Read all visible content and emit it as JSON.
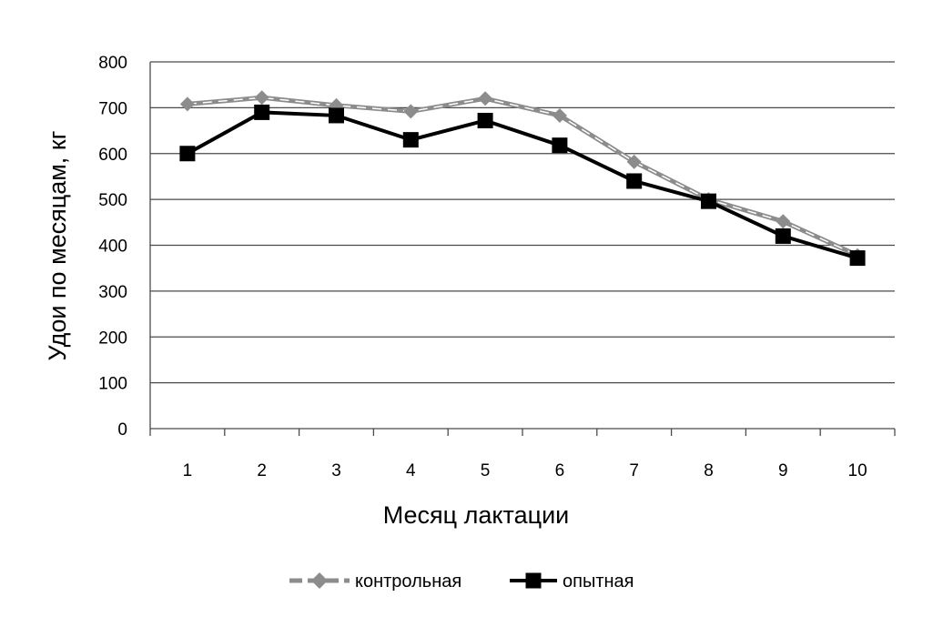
{
  "chart_data": {
    "type": "line",
    "title": "",
    "xlabel": "Месяц лактации",
    "ylabel": "Удои по месяцам, кг",
    "categories": [
      "1",
      "2",
      "3",
      "4",
      "5",
      "6",
      "7",
      "8",
      "9",
      "10"
    ],
    "ylim": [
      0,
      800
    ],
    "yticks": [
      "0",
      "100",
      "200",
      "300",
      "400",
      "500",
      "600",
      "700",
      "800"
    ],
    "grid": true,
    "legend_position": "bottom",
    "series": [
      {
        "name": "контрольная",
        "color": "#8c8c8c",
        "marker": "diamond",
        "line_style": "dashed",
        "values": [
          708,
          722,
          705,
          692,
          720,
          683,
          582,
          500,
          452,
          378
        ]
      },
      {
        "name": "опытная",
        "color": "#000000",
        "marker": "square",
        "line_style": "solid",
        "values": [
          600,
          690,
          683,
          630,
          672,
          618,
          540,
          496,
          420,
          372
        ]
      }
    ]
  }
}
